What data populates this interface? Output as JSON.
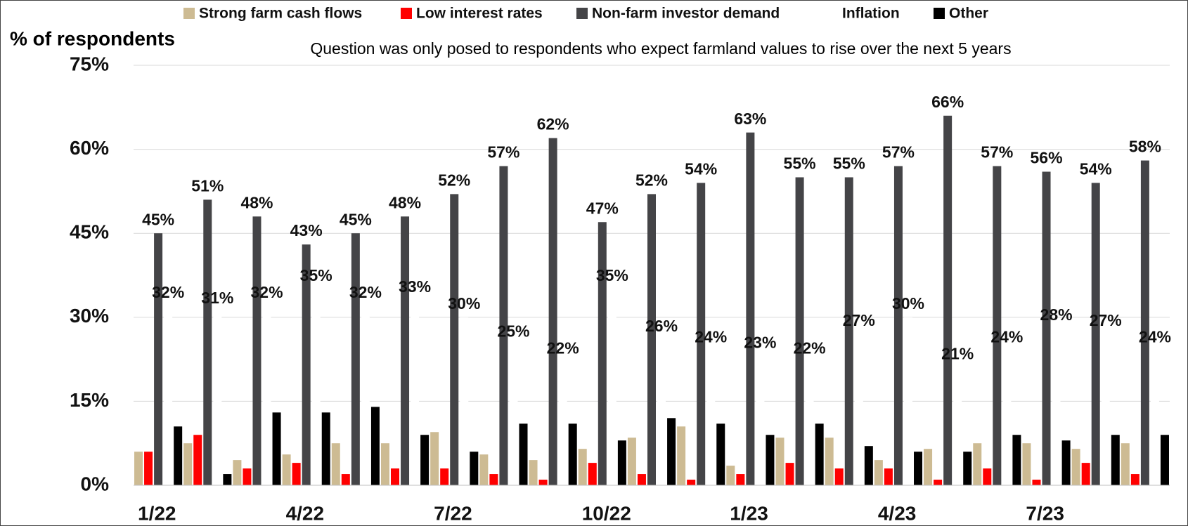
{
  "chart_data": {
    "type": "bar",
    "y_label": "% of respondents",
    "subtitle": "Question was only posed to respondents who expect farmland values to rise over the next 5 years",
    "categories": [
      "1/22",
      null,
      null,
      "4/22",
      null,
      null,
      "7/22",
      null,
      null,
      "10/22",
      null,
      null,
      "1/23",
      null,
      null,
      "4/23",
      null,
      null,
      "7/23",
      null,
      null
    ],
    "series": [
      {
        "name": "Strong farm cash flows",
        "color": "#cdbb93",
        "values": [
          6,
          7.5,
          4.5,
          5.5,
          7.5,
          7.5,
          9.5,
          5.5,
          4.5,
          6.5,
          8.5,
          10.5,
          3.5,
          8.5,
          8.5,
          4.5,
          6.5,
          7.5,
          7.5,
          6.5,
          7.5
        ]
      },
      {
        "name": "Low interest rates",
        "color": "#ff0000",
        "values": [
          6,
          9,
          3,
          4,
          2,
          3,
          3,
          2,
          1,
          4,
          2,
          1,
          2,
          4,
          3,
          3,
          1,
          3,
          1,
          4,
          2
        ]
      },
      {
        "name": "Non-farm investor demand",
        "color": "#444447",
        "values": [
          45,
          51,
          48,
          43,
          45,
          48,
          52,
          57,
          62,
          47,
          52,
          54,
          63,
          55,
          55,
          57,
          66,
          57,
          56,
          54,
          58
        ],
        "value_labels": [
          "45%",
          "51%",
          "48%",
          "43%",
          "45%",
          "48%",
          "52%",
          "57%",
          "62%",
          "47%",
          "52%",
          "54%",
          "63%",
          "55%",
          "55%",
          "57%",
          "66%",
          "57%",
          "56%",
          "54%",
          "58%"
        ]
      },
      {
        "name": "Inflation",
        "color": "#ffffff",
        "values": [
          32,
          31,
          32,
          35,
          32,
          33,
          30,
          25,
          22,
          35,
          26,
          24,
          23,
          22,
          27,
          30,
          21,
          24,
          28,
          27,
          24
        ],
        "value_labels": [
          "32%",
          "31%",
          "32%",
          "35%",
          "32%",
          "33%",
          "30%",
          "25%",
          "22%",
          "35%",
          "26%",
          "24%",
          "23%",
          "22%",
          "27%",
          "30%",
          "21%",
          "24%",
          "28%",
          "27%",
          "24%"
        ]
      },
      {
        "name": "Other",
        "color": "#000000",
        "values": [
          10.5,
          2,
          13,
          13,
          14,
          9,
          6,
          11,
          11,
          8,
          12,
          11,
          9,
          11,
          7,
          6,
          6,
          9,
          8,
          9,
          9
        ]
      }
    ],
    "ylim": [
      0,
      75
    ],
    "yticks": [
      {
        "value": 0,
        "label": "0%"
      },
      {
        "value": 15,
        "label": "15%"
      },
      {
        "value": 30,
        "label": "30%"
      },
      {
        "value": 45,
        "label": "45%"
      },
      {
        "value": 60,
        "label": "60%"
      },
      {
        "value": 75,
        "label": "75%"
      }
    ],
    "grid": true
  }
}
